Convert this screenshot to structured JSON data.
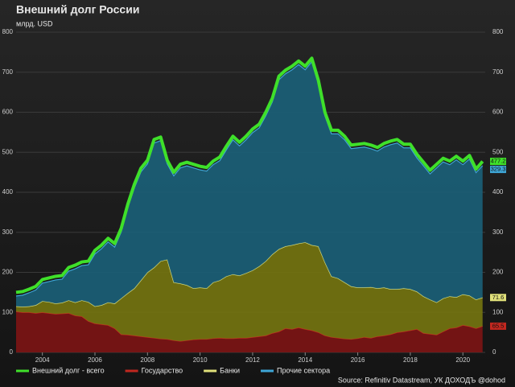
{
  "chart_data": {
    "type": "area",
    "stacked": true,
    "title": "Внешний долг России",
    "subtitle": "млрд. USD",
    "source": "Source: Refinitiv Datastream, УК ДОХОДЪ @dohod",
    "x": [
      2003,
      2003.25,
      2003.5,
      2003.75,
      2004,
      2004.25,
      2004.5,
      2004.75,
      2005,
      2005.25,
      2005.5,
      2005.75,
      2006,
      2006.25,
      2006.5,
      2006.75,
      2007,
      2007.25,
      2007.5,
      2007.75,
      2008,
      2008.25,
      2008.5,
      2008.75,
      2009,
      2009.25,
      2009.5,
      2009.75,
      2010,
      2010.25,
      2010.5,
      2010.75,
      2011,
      2011.25,
      2011.5,
      2011.75,
      2012,
      2012.25,
      2012.5,
      2012.75,
      2013,
      2013.25,
      2013.5,
      2013.75,
      2014,
      2014.25,
      2014.5,
      2014.75,
      2015,
      2015.25,
      2015.5,
      2015.75,
      2016,
      2016.25,
      2016.5,
      2016.75,
      2017,
      2017.25,
      2017.5,
      2017.75,
      2018,
      2018.25,
      2018.5,
      2018.75,
      2019,
      2019.25,
      2019.5,
      2019.75,
      2020,
      2020.25,
      2020.5,
      2020.75
    ],
    "xlim": [
      2003,
      2020.85
    ],
    "xticks": [
      2004,
      2006,
      2008,
      2010,
      2012,
      2014,
      2016,
      2018,
      2020
    ],
    "ylim": [
      0,
      800
    ],
    "yticks": [
      0,
      100,
      200,
      300,
      400,
      500,
      600,
      700,
      800
    ],
    "grid": true,
    "series": [
      {
        "name": "Внешний долг - всего",
        "type": "line",
        "color": "#3fe02a",
        "values": [
          150,
          152,
          158,
          165,
          182,
          186,
          190,
          192,
          212,
          218,
          226,
          228,
          255,
          268,
          285,
          272,
          310,
          370,
          420,
          460,
          480,
          532,
          538,
          480,
          450,
          470,
          475,
          470,
          465,
          462,
          478,
          488,
          515,
          540,
          525,
          540,
          558,
          570,
          600,
          635,
          690,
          705,
          715,
          728,
          715,
          735,
          680,
          600,
          555,
          555,
          540,
          518,
          520,
          522,
          518,
          512,
          522,
          528,
          532,
          520,
          520,
          495,
          475,
          455,
          470,
          485,
          478,
          490,
          478,
          492,
          458,
          477.2
        ]
      },
      {
        "name": "Государство",
        "color": "#c1271f",
        "fill": "#7d1414",
        "values": [
          102,
          100,
          100,
          98,
          100,
          98,
          96,
          97,
          98,
          92,
          90,
          78,
          72,
          70,
          68,
          60,
          45,
          44,
          42,
          40,
          38,
          36,
          34,
          33,
          30,
          28,
          30,
          32,
          33,
          33,
          35,
          36,
          35,
          35,
          36,
          36,
          38,
          40,
          42,
          48,
          52,
          60,
          58,
          62,
          58,
          55,
          50,
          42,
          38,
          36,
          34,
          33,
          35,
          38,
          36,
          40,
          42,
          45,
          50,
          52,
          55,
          58,
          48,
          46,
          44,
          52,
          60,
          62,
          68,
          65,
          60,
          65.5
        ]
      },
      {
        "name": "Банки",
        "color": "#e0e07a",
        "fill": "#76760f",
        "values": [
          13,
          14,
          15,
          20,
          28,
          28,
          26,
          27,
          32,
          33,
          40,
          48,
          43,
          48,
          57,
          62,
          90,
          104,
          118,
          140,
          162,
          176,
          194,
          199,
          145,
          144,
          138,
          128,
          129,
          127,
          140,
          144,
          155,
          160,
          156,
          162,
          167,
          175,
          186,
          197,
          206,
          205,
          210,
          210,
          217,
          213,
          215,
          183,
          152,
          149,
          141,
          132,
          127,
          124,
          127,
          120,
          120,
          113,
          108,
          108,
          103,
          94,
          92,
          86,
          81,
          83,
          80,
          76,
          77,
          77,
          72,
          71.6
        ]
      },
      {
        "name": "Прочие сектора",
        "color": "#3ea6d6",
        "fill": "#1b6079",
        "values": [
          26,
          29,
          34,
          38,
          45,
          51,
          59,
          59,
          73,
          84,
          87,
          93,
          131,
          141,
          151,
          141,
          166,
          213,
          251,
          271,
          271,
          311,
          301,
          239,
          266,
          289,
          298,
          301,
          294,
          293,
          294,
          299,
          316,
          336,
          324,
          333,
          344,
          346,
          363,
          381,
          423,
          431,
          438,
          447,
          431,
          458,
          406,
          366,
          356,
          361,
          356,
          344,
          349,
          351,
          346,
          343,
          351,
          361,
          365,
          351,
          353,
          334,
          326,
          314,
          336,
          341,
          329,
          343,
          324,
          341,
          317,
          329.3
        ]
      }
    ]
  }
}
